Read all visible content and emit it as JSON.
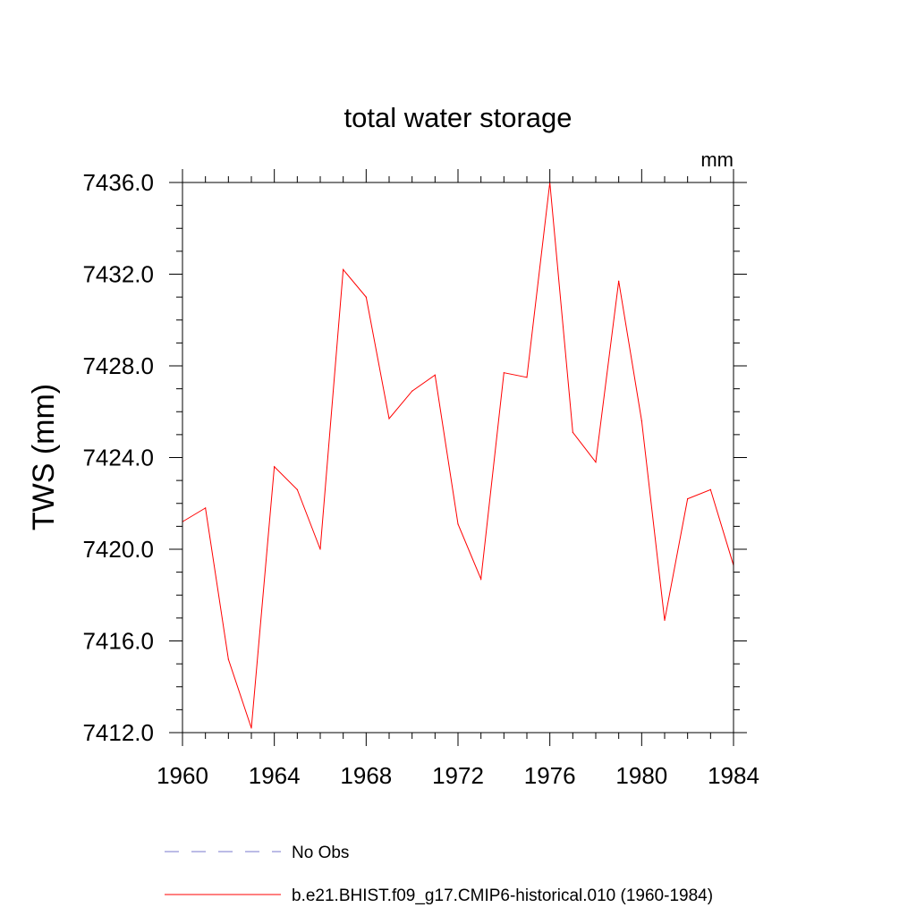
{
  "chart_data": {
    "type": "line",
    "title": "total water storage",
    "units_label": "mm",
    "ylabel": "TWS  (mm)",
    "xlabel": "",
    "xlim": [
      1960,
      1984
    ],
    "ylim": [
      7412.0,
      7436.0
    ],
    "x_ticks": [
      1960,
      1964,
      1968,
      1972,
      1976,
      1980,
      1984
    ],
    "y_ticks": [
      "7412.0",
      "7416.0",
      "7420.0",
      "7424.0",
      "7428.0",
      "7432.0",
      "7436.0"
    ],
    "x_minor_step": 1,
    "y_minor_step": 1,
    "grid": false,
    "legend_position": "bottom",
    "series": [
      {
        "name": "b.e21.BHIST.f09_g17.CMIP6-historical.010 (1960-1984)",
        "color": "#ff0000",
        "style": "solid",
        "x": [
          1960,
          1961,
          1962,
          1963,
          1964,
          1965,
          1966,
          1967,
          1968,
          1969,
          1970,
          1971,
          1972,
          1973,
          1974,
          1975,
          1976,
          1977,
          1978,
          1979,
          1980,
          1981,
          1982,
          1983,
          1984
        ],
        "y": [
          7421.2,
          7421.8,
          7415.2,
          7412.2,
          7423.6,
          7422.6,
          7420.0,
          7432.2,
          7431.0,
          7425.7,
          7426.9,
          7427.6,
          7421.1,
          7418.7,
          7427.7,
          7427.5,
          7436.0,
          7425.1,
          7423.8,
          7431.7,
          7425.6,
          7416.9,
          7422.2,
          7422.6,
          7419.3
        ]
      }
    ],
    "legend": [
      {
        "label": "No Obs",
        "color": "#7777cc",
        "style": "dashed"
      },
      {
        "label": "b.e21.BHIST.f09_g17.CMIP6-historical.010 (1960-1984)",
        "color": "#ff0000",
        "style": "solid"
      }
    ]
  }
}
